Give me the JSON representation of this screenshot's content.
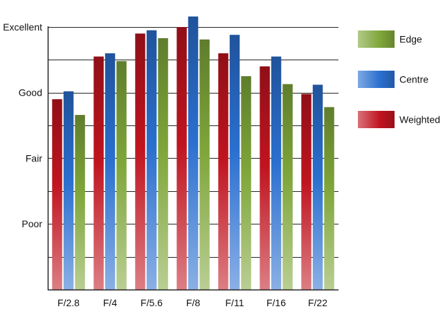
{
  "chart_data": {
    "type": "bar",
    "categories": [
      "F/2.8",
      "F/4",
      "F/5.6",
      "F/8",
      "F/11",
      "F/16",
      "F/22"
    ],
    "y_tick_labels": [
      "Poor",
      "Fair",
      "Good",
      "Excellent"
    ],
    "y_tick_values": [
      1,
      2,
      3,
      4
    ],
    "ylim": [
      0,
      4.2
    ],
    "grid": true,
    "legend_position": "right",
    "series": [
      {
        "name": "Weighted",
        "color": "#c0141f",
        "values": [
          2.9,
          3.55,
          3.9,
          4.0,
          3.6,
          3.4,
          2.98
        ]
      },
      {
        "name": "Centre",
        "color": "#2a6fcf",
        "values": [
          3.02,
          3.6,
          3.95,
          4.16,
          3.88,
          3.55,
          3.12
        ]
      },
      {
        "name": "Edge",
        "color": "#7fa63a",
        "values": [
          2.66,
          3.48,
          3.83,
          3.81,
          3.25,
          3.13,
          2.78
        ]
      }
    ],
    "legend_order": [
      "Edge",
      "Centre",
      "Weighted"
    ]
  }
}
